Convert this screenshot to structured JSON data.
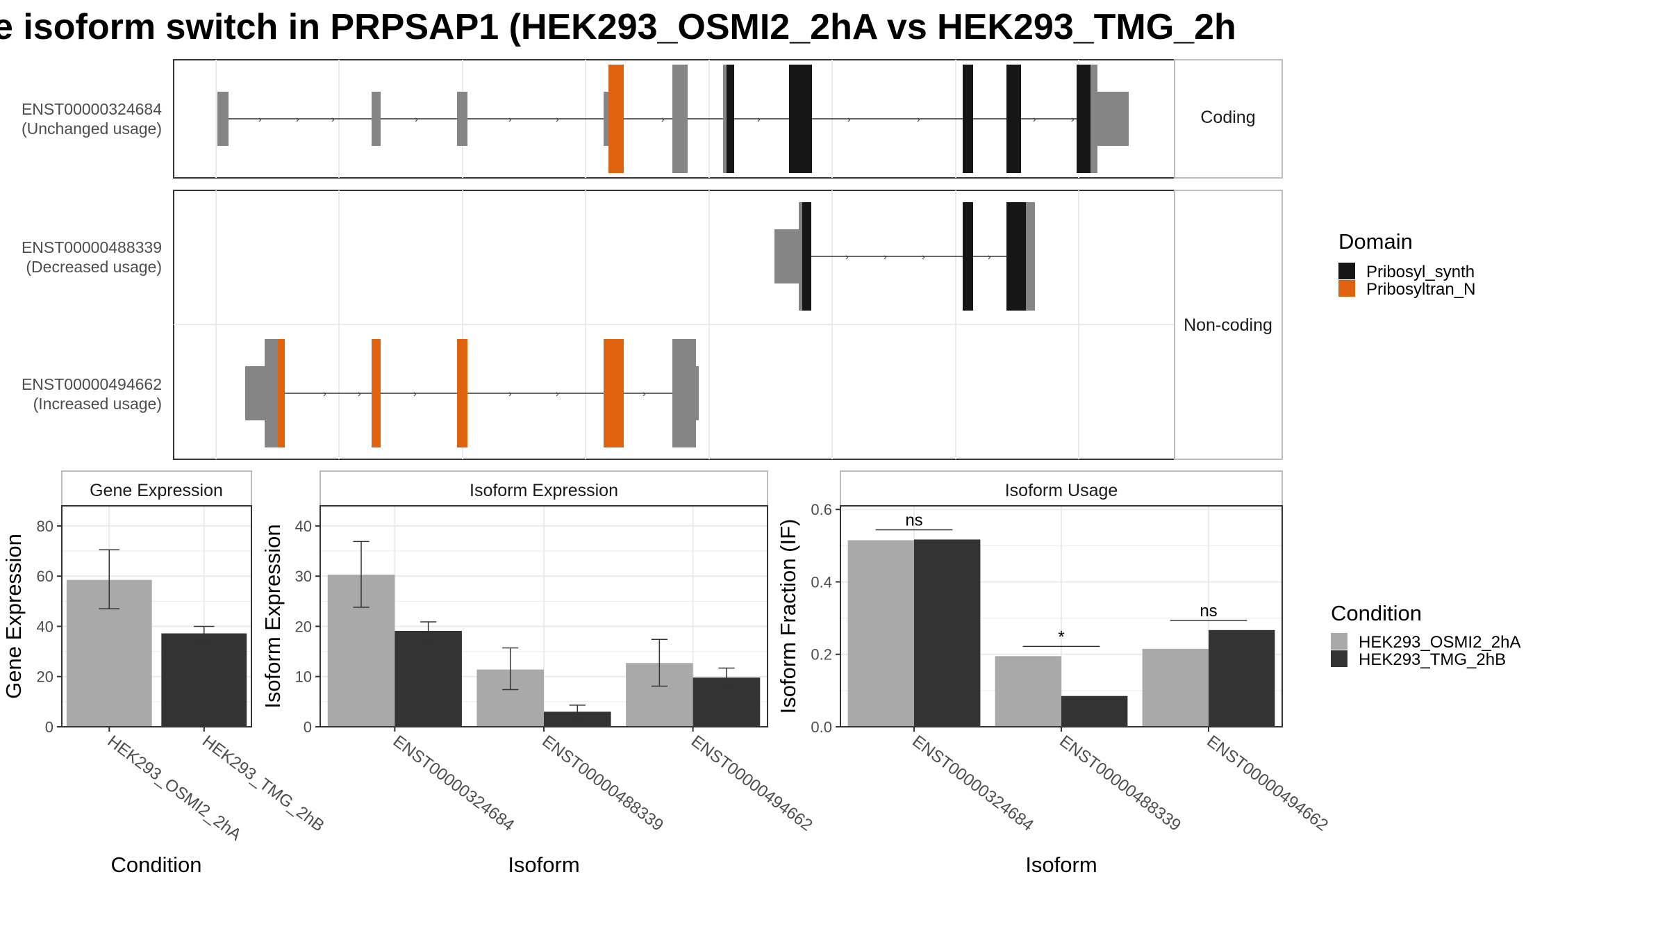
{
  "title": "e isoform switch in PRPSAP1 (HEK293_OSMI2_2hA vs HEK293_TMG_2h",
  "colors": {
    "cond_a": "#a9a9a9",
    "cond_b": "#333333",
    "pribosyl_synth": "#161616",
    "pribosyltran_n": "#e0620f",
    "no_domain": "#858585",
    "strip_border": "#bdbdbd",
    "grid": "#ebebeb"
  },
  "structure": {
    "facets": [
      "Coding",
      "Non-coding"
    ],
    "isoforms": [
      {
        "id": "ENST00000324684",
        "usage": "(Unchanged usage)"
      },
      {
        "id": "ENST00000488339",
        "usage": "(Decreased usage)"
      },
      {
        "id": "ENST00000494662",
        "usage": "(Increased usage)"
      }
    ],
    "legend": {
      "title": "Domain",
      "items": [
        {
          "label": "Pribosyl_synth",
          "color_key": "pribosyl_synth"
        },
        {
          "label": "Pribosyltran_N",
          "color_key": "pribosyltran_n"
        }
      ]
    }
  },
  "condition_legend": {
    "title": "Condition",
    "items": [
      {
        "label": "HEK293_OSMI2_2hA",
        "color_key": "cond_a"
      },
      {
        "label": "HEK293_TMG_2hB",
        "color_key": "cond_b"
      }
    ]
  },
  "chart_data": [
    {
      "type": "bar",
      "title": "Gene Expression",
      "xlabel": "Condition",
      "ylabel": "Gene Expression",
      "ylim": [
        0,
        88
      ],
      "yticks": [
        0,
        20,
        40,
        60,
        80
      ],
      "categories": [
        "HEK293_OSMI2_2hA",
        "HEK293_TMG_2hB"
      ],
      "values": [
        58.5,
        37.2
      ],
      "error_low": [
        47,
        34.5
      ],
      "error_high": [
        70.5,
        40
      ]
    },
    {
      "type": "bar",
      "title": "Isoform Expression",
      "xlabel": "Isoform",
      "ylabel": "Isoform Expression",
      "ylim": [
        0,
        44
      ],
      "yticks": [
        0,
        10,
        20,
        30,
        40
      ],
      "categories": [
        "ENST00000324684",
        "ENST00000488339",
        "ENST00000494662"
      ],
      "series": [
        {
          "name": "HEK293_OSMI2_2hA",
          "values": [
            30.3,
            11.4,
            12.7
          ],
          "error_low": [
            23.8,
            7.4,
            8.1
          ],
          "error_high": [
            36.9,
            15.7,
            17.4
          ]
        },
        {
          "name": "HEK293_TMG_2hB",
          "values": [
            19.1,
            3.0,
            9.8
          ],
          "error_low": [
            17.3,
            1.8,
            8.0
          ],
          "error_high": [
            20.9,
            4.3,
            11.7
          ]
        }
      ]
    },
    {
      "type": "bar",
      "title": "Isoform Usage",
      "xlabel": "Isoform",
      "ylabel": "Isoform Fraction (IF)",
      "ylim": [
        0,
        0.61
      ],
      "yticks": [
        0.0,
        0.2,
        0.4,
        0.6
      ],
      "ytick_labels": [
        "0.0",
        "0.2",
        "0.4",
        "0.6"
      ],
      "categories": [
        "ENST00000324684",
        "ENST00000488339",
        "ENST00000494662"
      ],
      "series": [
        {
          "name": "HEK293_OSMI2_2hA",
          "values": [
            0.515,
            0.195,
            0.215
          ]
        },
        {
          "name": "HEK293_TMG_2hB",
          "values": [
            0.517,
            0.085,
            0.267
          ]
        }
      ],
      "significance": [
        "ns",
        "*",
        "ns"
      ]
    }
  ]
}
